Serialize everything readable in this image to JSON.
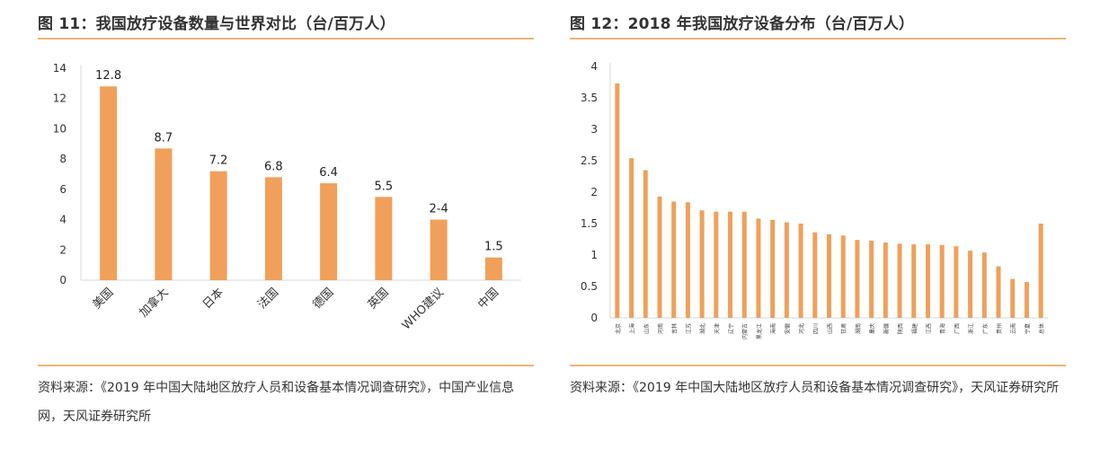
{
  "left": {
    "title": "图 11：我国放疗设备数量与世界对比（台/百万人）",
    "source": "资料来源：《2019 年中国大陆地区放疗人员和设备基本情况调查研究》，中国产业信息网，天风证券研究所"
  },
  "right": {
    "title": "图 12：2018 年我国放疗设备分布（台/百万人）",
    "source": "资料来源：《2019 年中国大陆地区放疗人员和设备基本情况调查研究》，天风证券研究所"
  },
  "colors": {
    "bar": "#f0a05a",
    "rule": "#f0b37a",
    "axis": "#d9d9d9"
  },
  "chart_data": [
    {
      "type": "bar",
      "categories": [
        "美国",
        "加拿大",
        "日本",
        "法国",
        "德国",
        "英国",
        "WHO建议",
        "中国"
      ],
      "values": [
        12.8,
        8.7,
        7.2,
        6.8,
        6.4,
        5.5,
        4,
        1.5
      ],
      "data_labels": [
        "12.8",
        "8.7",
        "7.2",
        "6.8",
        "6.4",
        "5.5",
        "2-4",
        "1.5"
      ],
      "ylim": [
        0,
        14
      ],
      "yticks": [
        0,
        2,
        4,
        6,
        8,
        10,
        12,
        14
      ],
      "grid": false,
      "legend": "none"
    },
    {
      "type": "bar",
      "categories": [
        "北京",
        "上海",
        "山东",
        "河南",
        "吉林",
        "江苏",
        "湖北",
        "天津",
        "辽宁",
        "内蒙古",
        "黑龙江",
        "海南",
        "安徽",
        "河北",
        "四川",
        "山西",
        "甘肃",
        "湖南",
        "重庆",
        "新疆",
        "陕西",
        "福建",
        "江西",
        "青海",
        "广西",
        "浙江",
        "广东",
        "贵州",
        "云南",
        "宁夏",
        "总体"
      ],
      "values": [
        3.73,
        2.54,
        2.35,
        1.93,
        1.85,
        1.84,
        1.71,
        1.69,
        1.69,
        1.69,
        1.58,
        1.56,
        1.52,
        1.5,
        1.36,
        1.33,
        1.31,
        1.24,
        1.23,
        1.2,
        1.18,
        1.17,
        1.17,
        1.16,
        1.14,
        1.07,
        1.04,
        0.82,
        0.62,
        0.57,
        1.5
      ],
      "ylim": [
        0,
        4
      ],
      "yticks": [
        "0",
        "0.5",
        "1",
        "1.5",
        "2",
        "2.5",
        "3",
        "3.5",
        "4"
      ],
      "grid": false,
      "legend": "none"
    }
  ]
}
